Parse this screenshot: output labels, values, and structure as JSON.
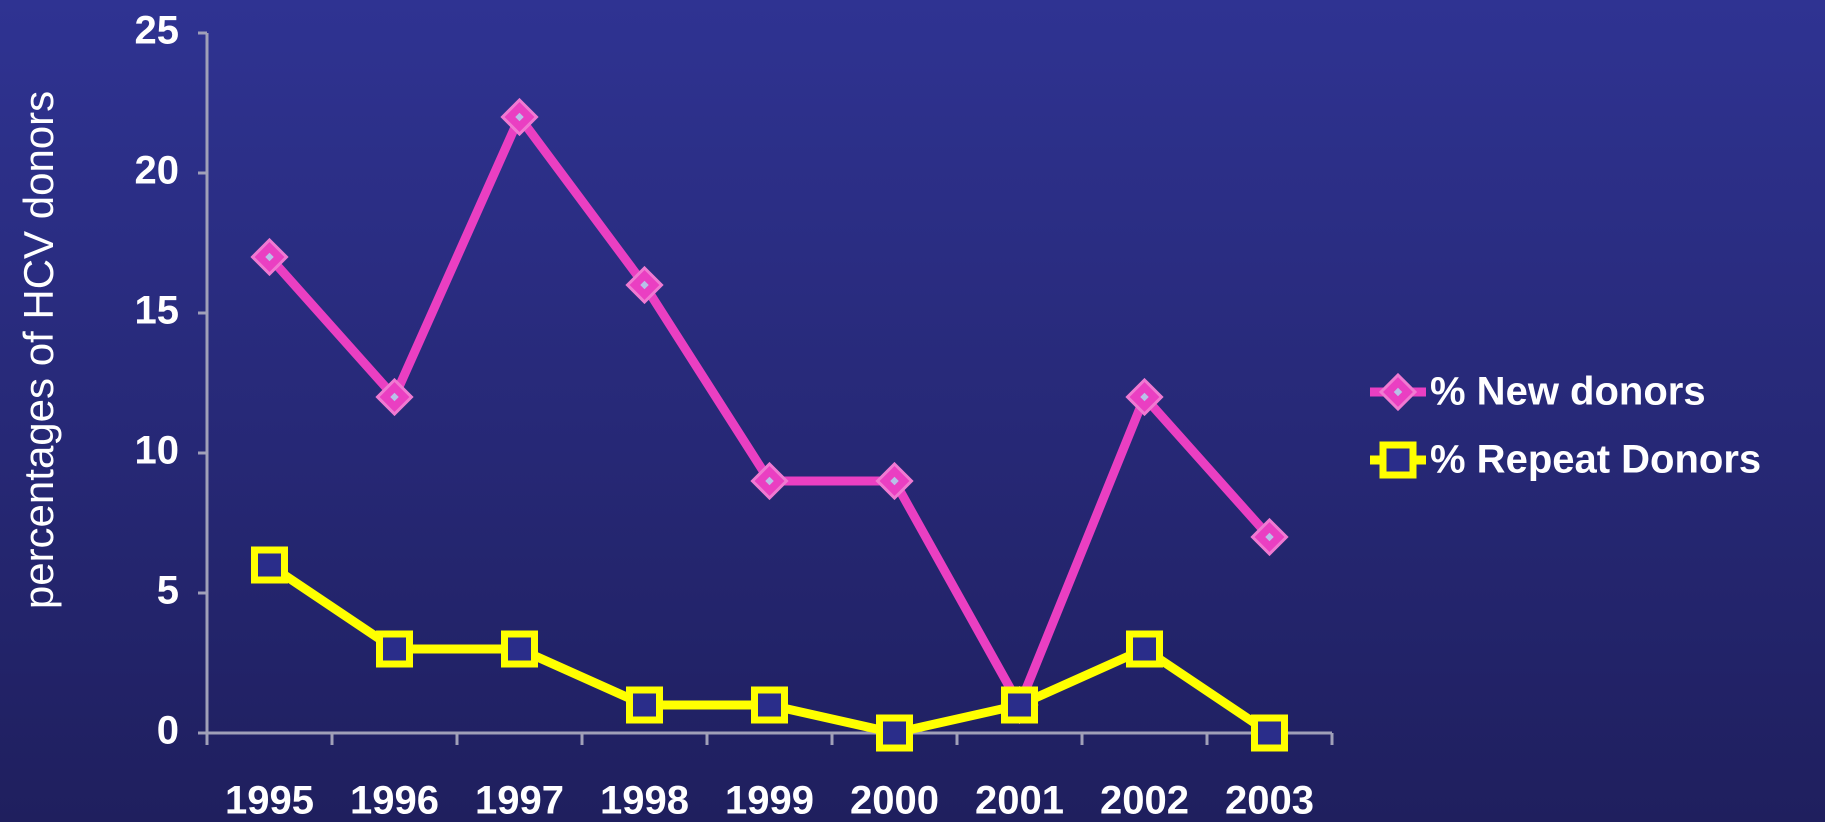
{
  "chart_data": {
    "type": "line",
    "y_label": "percentages of HCV donors",
    "categories": [
      "1995",
      "1996",
      "1997",
      "1998",
      "1999",
      "2000",
      "2001",
      "2002",
      "2003"
    ],
    "series": [
      {
        "name": "% New donors",
        "color": "#ea3fc2",
        "marker": "diamond",
        "values": [
          17,
          12,
          22,
          16,
          9,
          9,
          1,
          12,
          7
        ]
      },
      {
        "name": "% Repeat Donors",
        "color": "#ffff00",
        "marker": "square",
        "values": [
          6,
          3,
          3,
          1,
          1,
          0,
          1,
          3,
          0
        ]
      }
    ],
    "ylim": [
      0,
      25
    ],
    "yticks": [
      0,
      5,
      10,
      15,
      20,
      25
    ],
    "grid": false,
    "legend": "right"
  }
}
